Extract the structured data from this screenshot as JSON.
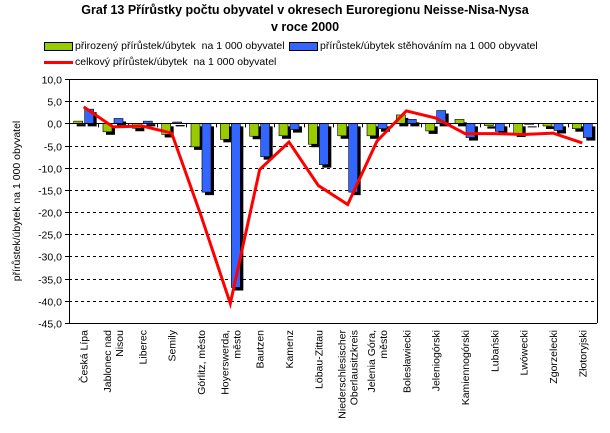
{
  "chart_data": {
    "type": "bar",
    "title": "Graf 13 Přírůstky počtu obyvatel v okresech Euroregionu Neisse-Nisa-Nysa",
    "subtitle": "v roce 2000",
    "xlabel": "",
    "ylabel": "přírůstek/úbytek na 1 000 obyvatel",
    "ylim": [
      -45,
      10
    ],
    "ytick_step": 5,
    "ytick_labels": [
      "10,0",
      "5,0",
      "0,0",
      "-5,0",
      "-10,0",
      "-15,0",
      "-20,0",
      "-25,0",
      "-30,0",
      "-35,0",
      "-40,0",
      "-45,0"
    ],
    "grid": true,
    "legend_position": "top",
    "categories": [
      [
        "Česká Lípa"
      ],
      [
        "Jablonec nad",
        "Nisou"
      ],
      [
        "Liberec"
      ],
      [
        "Semily"
      ],
      [
        "Görlitz, město"
      ],
      [
        "Hoyerswerda,",
        "město"
      ],
      [
        "Bautzen"
      ],
      [
        "Kamenz"
      ],
      [
        "Löbau-Zittau"
      ],
      [
        "Niederschlesischer",
        "Oberlausitzkreis"
      ],
      [
        "Jelenia Góra,",
        "město"
      ],
      [
        "Bolesławiecki"
      ],
      [
        "Jeleniogórski"
      ],
      [
        "Kamiennogórski"
      ],
      [
        "Lubański"
      ],
      [
        "Lwówecki"
      ],
      [
        "Zgorzelecki"
      ],
      [
        "Złotoryjski"
      ]
    ],
    "series": [
      {
        "name": "přirozený přírůstek/úbytek  na 1 000 obyvatel",
        "type": "bar",
        "color": "#99cc00",
        "values": [
          0.5,
          -1.9,
          -1.1,
          -2.5,
          -5.3,
          -3.6,
          -2.9,
          -2.8,
          -4.7,
          -2.8,
          -2.8,
          1.9,
          -1.7,
          0.9,
          -0.5,
          -2.4,
          -0.6,
          -1.2
        ]
      },
      {
        "name": "přírůstek/úbytek stěhováním na 1 000 obyvatel",
        "type": "bar",
        "color": "#3366ff",
        "values": [
          3.2,
          1.1,
          0.5,
          0.3,
          -15.5,
          -37.0,
          -7.5,
          -1.4,
          -9.3,
          -15.5,
          -1.2,
          0.9,
          2.9,
          -3.2,
          -1.8,
          -0.1,
          -1.6,
          -3.2
        ]
      },
      {
        "name": "celkový přírůstek/úbytek  na 1 000 obyvatel",
        "type": "line",
        "color": "#ff0000",
        "values": [
          3.7,
          -0.8,
          -0.6,
          -2.2,
          -20.8,
          -40.6,
          -10.4,
          -4.2,
          -14.0,
          -18.3,
          -4.0,
          2.8,
          1.2,
          -2.3,
          -2.3,
          -2.5,
          -2.2,
          -4.4
        ]
      }
    ]
  }
}
